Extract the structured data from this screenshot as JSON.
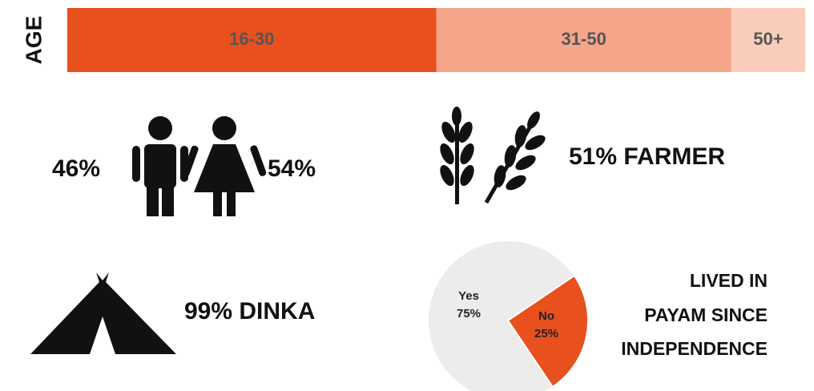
{
  "age": {
    "label": "AGE",
    "segments": [
      {
        "label": "16-30",
        "value": 50,
        "color": "#e8501e"
      },
      {
        "label": "31-50",
        "value": 40,
        "color": "#f4a58a"
      },
      {
        "label": "50+",
        "value": 10,
        "color": "#f9cdb9"
      }
    ]
  },
  "gender": {
    "male": "46%",
    "female": "54%"
  },
  "occupation": "51% FARMER",
  "ethnicity": "99% DINKA",
  "residence": {
    "title_lines": [
      "LIVED IN",
      "PAYAM SINCE",
      "INDEPENDENCE"
    ],
    "pie": {
      "slices": [
        {
          "label": "Yes",
          "value": 75,
          "value_label": "75%",
          "color": "#ececec"
        },
        {
          "label": "No",
          "value": 25,
          "value_label": "25%",
          "color": "#e8501e"
        }
      ]
    }
  }
}
